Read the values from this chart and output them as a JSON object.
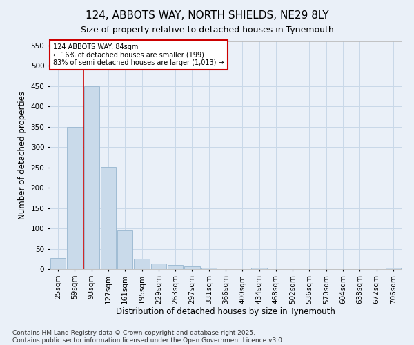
{
  "title": "124, ABBOTS WAY, NORTH SHIELDS, NE29 8LY",
  "subtitle": "Size of property relative to detached houses in Tynemouth",
  "xlabel": "Distribution of detached houses by size in Tynemouth",
  "ylabel": "Number of detached properties",
  "categories": [
    "25sqm",
    "59sqm",
    "93sqm",
    "127sqm",
    "161sqm",
    "195sqm",
    "229sqm",
    "263sqm",
    "297sqm",
    "331sqm",
    "366sqm",
    "400sqm",
    "434sqm",
    "468sqm",
    "502sqm",
    "536sqm",
    "570sqm",
    "604sqm",
    "638sqm",
    "672sqm",
    "706sqm"
  ],
  "values": [
    27,
    350,
    450,
    252,
    95,
    25,
    13,
    10,
    6,
    4,
    0,
    0,
    4,
    0,
    0,
    0,
    0,
    0,
    0,
    0,
    4
  ],
  "bar_color": "#c9daea",
  "bar_edge_color": "#a0bcd4",
  "grid_color": "#c8d8e8",
  "background_color": "#eaf0f8",
  "vline_color": "#cc0000",
  "annotation_line1": "124 ABBOTS WAY: 84sqm",
  "annotation_line2": "← 16% of detached houses are smaller (199)",
  "annotation_line3": "83% of semi-detached houses are larger (1,013) →",
  "annotation_box_color": "#ffffff",
  "annotation_border_color": "#cc0000",
  "ylim": [
    0,
    560
  ],
  "yticks": [
    0,
    50,
    100,
    150,
    200,
    250,
    300,
    350,
    400,
    450,
    500,
    550
  ],
  "footnote": "Contains HM Land Registry data © Crown copyright and database right 2025.\nContains public sector information licensed under the Open Government Licence v3.0.",
  "title_fontsize": 11,
  "subtitle_fontsize": 9,
  "xlabel_fontsize": 8.5,
  "ylabel_fontsize": 8.5,
  "tick_fontsize": 7.5,
  "footnote_fontsize": 6.5
}
